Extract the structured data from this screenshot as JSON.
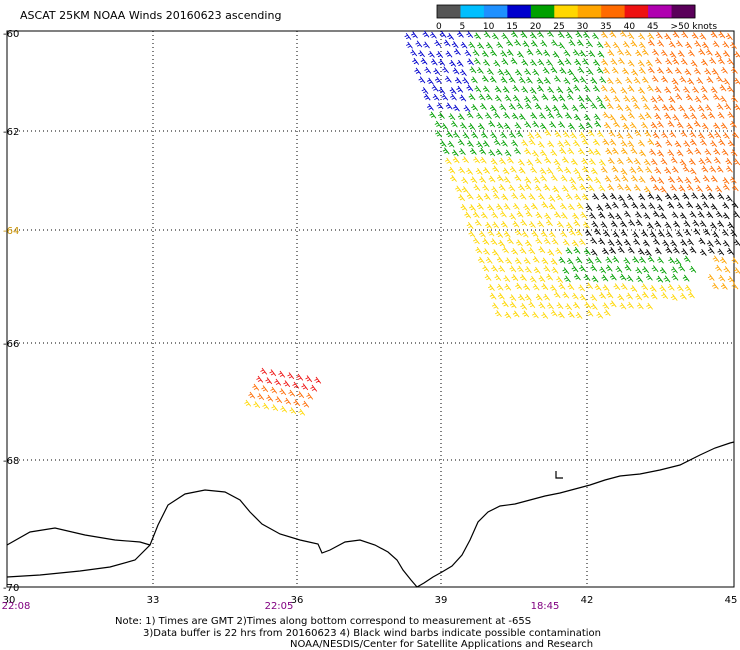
{
  "title": "ASCAT 25KM NOAA Winds 20160623 ascending",
  "legend": {
    "labels": [
      "0",
      "5",
      "10",
      "15",
      "20",
      "25",
      "30",
      "35",
      "40",
      "45",
      ">50 knots"
    ],
    "colors": [
      "#555555",
      "#00bfff",
      "#1e90ff",
      "#0000cd",
      "#00a000",
      "#ffd700",
      "#ffa500",
      "#ff6a00",
      "#ee1111",
      "#b000b0",
      "#5a005a"
    ]
  },
  "axes": {
    "lat_labels": [
      "-60",
      "-62",
      "-64",
      "-66",
      "-68",
      "-70"
    ],
    "lon_labels": [
      "30",
      "33",
      "36",
      "39",
      "42",
      "45"
    ],
    "time_labels": [
      "22:08",
      "22:05",
      "18:45"
    ]
  },
  "notes": {
    "line1": "Note: 1) Times are GMT 2)Times along bottom correspond to measurement at -65S",
    "line2": "3)Data buffer is 22 hrs from 20160623 4) Black wind barbs indicate possible contamination",
    "line3": "NOAA/NESDIS/Center for Satellite Applications and Research"
  }
}
